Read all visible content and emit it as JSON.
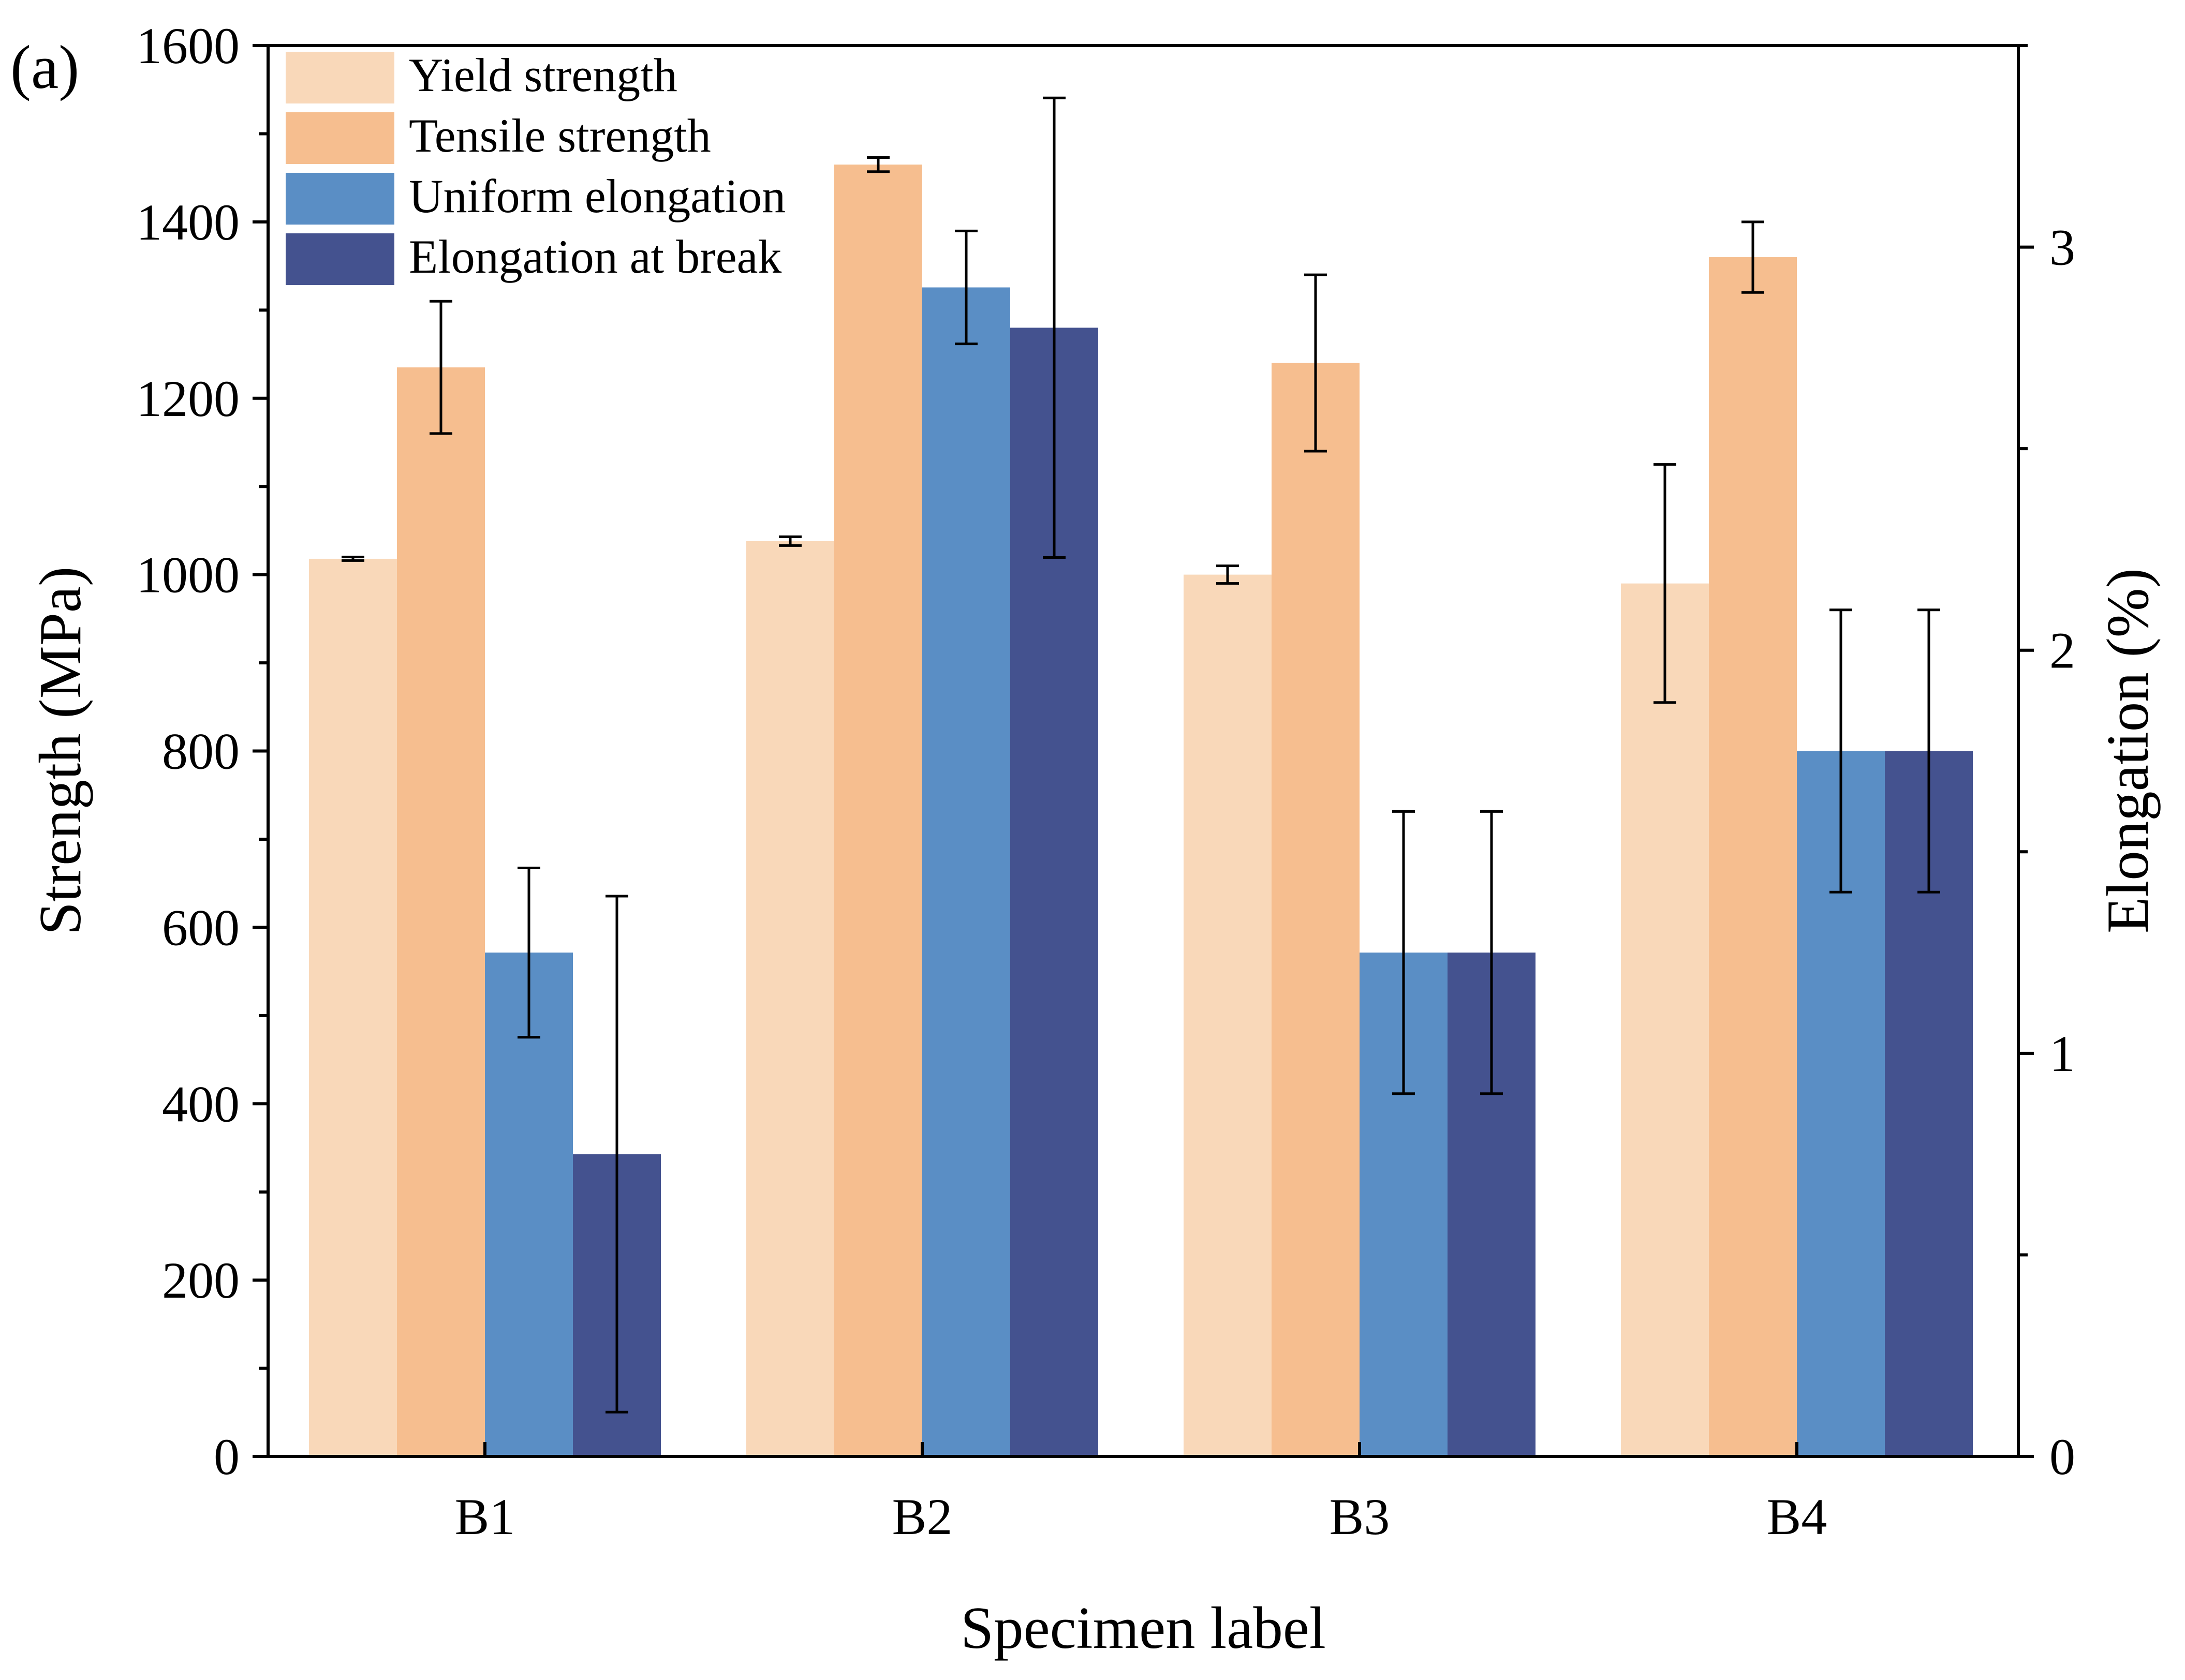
{
  "panel_label": "(a)",
  "chart_data": {
    "type": "bar",
    "title": "",
    "xlabel": "Specimen label",
    "ylabel": "Strength (MPa)",
    "y2label": "Elongation (%)",
    "ylim": [
      0,
      1600
    ],
    "y2lim": [
      0,
      3.5
    ],
    "yticks": [
      "0",
      "200",
      "400",
      "600",
      "800",
      "1000",
      "1200",
      "1400",
      "1600"
    ],
    "y2ticks": [
      "0",
      "1",
      "2",
      "3"
    ],
    "categories": [
      "B1",
      "B2",
      "B3",
      "B4"
    ],
    "legend_position": "top-left",
    "series": [
      {
        "name": "Yield strength",
        "axis": "left",
        "color": "#F9D8B9",
        "values": [
          1018,
          1038,
          1000,
          990
        ],
        "errors": [
          2,
          5,
          10,
          135
        ]
      },
      {
        "name": "Tensile strength",
        "axis": "left",
        "color": "#F6BE8F",
        "values": [
          1235,
          1465,
          1240,
          1360
        ],
        "errors": [
          75,
          8,
          100,
          40
        ]
      },
      {
        "name": "Uniform elongation",
        "axis": "right",
        "color": "#5A8EC5",
        "values": [
          1.25,
          2.9,
          1.25,
          1.75
        ],
        "errors": [
          0.21,
          0.14,
          0.35,
          0.35
        ]
      },
      {
        "name": "Elongation at break",
        "axis": "right",
        "color": "#44528F",
        "values": [
          0.75,
          2.8,
          1.25,
          1.75
        ],
        "errors": [
          0.64,
          0.57,
          0.35,
          0.35
        ]
      }
    ]
  }
}
